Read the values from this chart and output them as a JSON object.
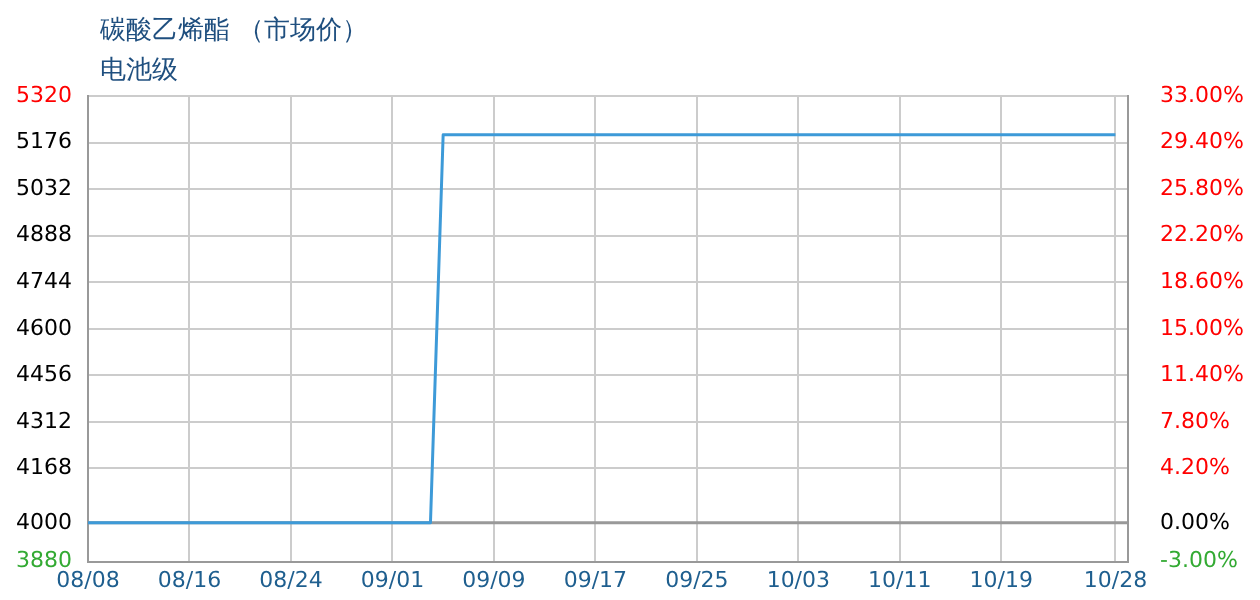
{
  "chart_data": {
    "type": "line",
    "title": "碳酸乙烯酯 （市场价）",
    "subtitle": "电池级",
    "x": [
      "--08-08",
      "--09-04",
      "--09-05",
      "--10-28"
    ],
    "series": [
      {
        "color": "#3d9ad8",
        "values": [
          4000,
          4000,
          5200,
          5200
        ]
      }
    ],
    "xlim": [
      "--08-08",
      "--10-29"
    ],
    "xticks": [
      {
        "value": "--08-08",
        "label": "08/08"
      },
      {
        "value": "--08-16",
        "label": "08/16"
      },
      {
        "value": "--08-24",
        "label": "08/24"
      },
      {
        "value": "--09-01",
        "label": "09/01"
      },
      {
        "value": "--09-09",
        "label": "09/09"
      },
      {
        "value": "--09-17",
        "label": "09/17"
      },
      {
        "value": "--09-25",
        "label": "09/25"
      },
      {
        "value": "--10-03",
        "label": "10/03"
      },
      {
        "value": "--10-11",
        "label": "10/11"
      },
      {
        "value": "--10-19",
        "label": "10/19"
      },
      {
        "value": "--10-28",
        "label": "10/28"
      }
    ],
    "ylim": [
      3880,
      5320
    ],
    "yticks": [
      3880,
      4000,
      4168,
      4312,
      4456,
      4600,
      4744,
      4888,
      5032,
      5176,
      5320
    ],
    "y2lim": [
      -3,
      33
    ],
    "y2ticks": [
      {
        "value": -3,
        "label": "-3.00%"
      },
      {
        "value": 0,
        "label": "0.00%"
      },
      {
        "value": 4.2,
        "label": "4.20%"
      },
      {
        "value": 7.8,
        "label": "7.80%"
      },
      {
        "value": 11.4,
        "label": "11.40%"
      },
      {
        "value": 15,
        "label": "15.00%"
      },
      {
        "value": 18.6,
        "label": "18.60%"
      },
      {
        "value": 22.2,
        "label": "22.20%"
      },
      {
        "value": 25.8,
        "label": "25.80%"
      },
      {
        "value": 29.4,
        "label": "29.40%"
      },
      {
        "value": 33,
        "label": "33.00%"
      }
    ],
    "ref_lines": [
      {
        "axis": "y2",
        "value": 0,
        "color": "#999999"
      }
    ],
    "grid": true,
    "legend": false,
    "marker": "none",
    "line_style": "solid"
  }
}
